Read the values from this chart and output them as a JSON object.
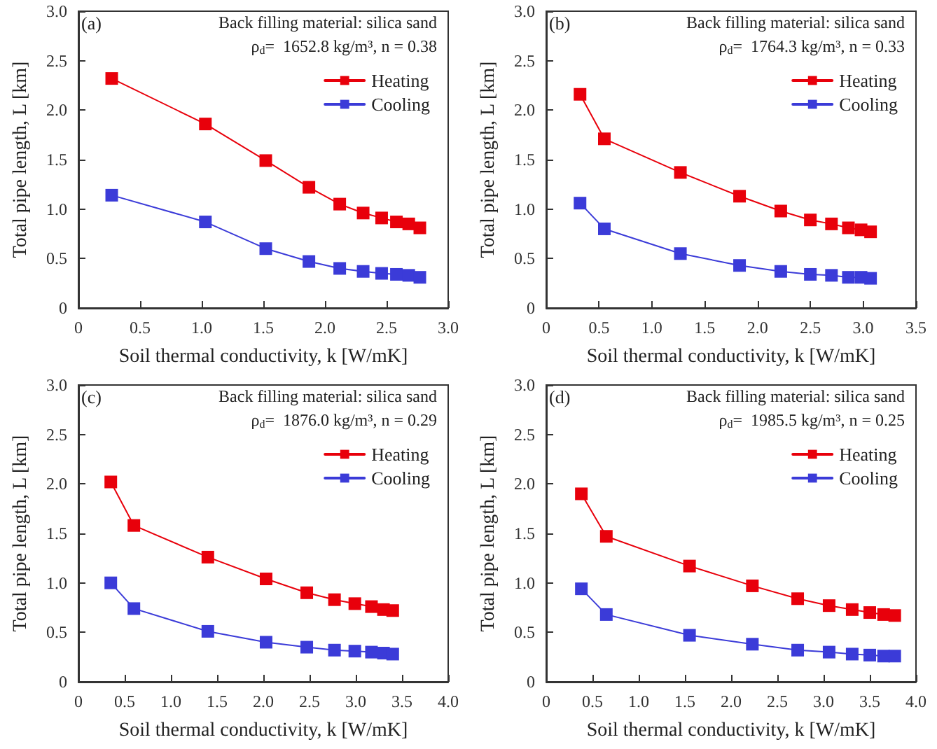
{
  "chart_data": [
    {
      "type": "line",
      "annotations": [
        "(a)",
        "Back filling material: silica sand",
        "ρ$_{d}$=  1652.8 kg/m³, n = 0.38"
      ],
      "xlabel": "Soil thermal conductivity, k [W/mK]",
      "ylabel": "Total pipe length, L [km]",
      "x": [
        0.27,
        1.03,
        1.52,
        1.87,
        2.12,
        2.31,
        2.46,
        2.58,
        2.68,
        2.77
      ],
      "series": [
        {
          "name": "Heating",
          "color": "#e8000b",
          "values": [
            2.32,
            1.86,
            1.49,
            1.22,
            1.05,
            0.96,
            0.91,
            0.87,
            0.85,
            0.81
          ]
        },
        {
          "name": "Cooling",
          "color": "#3b3bd8",
          "values": [
            1.14,
            0.87,
            0.6,
            0.47,
            0.4,
            0.37,
            0.35,
            0.34,
            0.33,
            0.31
          ]
        }
      ],
      "xlim": [
        0,
        3
      ],
      "xticks": [
        0,
        0.5,
        {
          "value": 1,
          "label": "1.0"
        },
        1.5,
        {
          "value": 2,
          "label": "2.0"
        },
        2.5,
        {
          "value": 3,
          "label": "3.0"
        }
      ],
      "ylim": [
        0,
        3
      ],
      "yticks": [
        0,
        0.5,
        {
          "value": 1,
          "label": "1.0"
        },
        1.5,
        {
          "value": 2,
          "label": "2.0"
        },
        2.5,
        {
          "value": 3,
          "label": "3.0"
        }
      ],
      "grid": false,
      "legend": "top right",
      "marker": "square",
      "line_style": "solid"
    },
    {
      "type": "line",
      "annotations": [
        "(b)",
        "Back filling material: silica sand",
        "ρ$_{d}$=  1764.3 kg/m³, n = 0.33"
      ],
      "xlabel": "Soil thermal conductivity, k [W/mK]",
      "ylabel": "Total pipe length, L [km]",
      "x": [
        0.32,
        0.55,
        1.27,
        1.83,
        2.22,
        2.5,
        2.7,
        2.86,
        2.98,
        3.07
      ],
      "series": [
        {
          "name": "Heating",
          "color": "#e8000b",
          "values": [
            2.16,
            1.71,
            1.37,
            1.13,
            0.98,
            0.89,
            0.85,
            0.81,
            0.79,
            0.77
          ]
        },
        {
          "name": "Cooling",
          "color": "#3b3bd8",
          "values": [
            1.06,
            0.8,
            0.55,
            0.43,
            0.37,
            0.34,
            0.33,
            0.31,
            0.31,
            0.3
          ]
        }
      ],
      "xlim": [
        0,
        3.5
      ],
      "xticks": [
        0,
        0.5,
        {
          "value": 1,
          "label": "1.0"
        },
        1.5,
        {
          "value": 2,
          "label": "2.0"
        },
        2.5,
        {
          "value": 3,
          "label": "3.0"
        },
        3.5
      ],
      "ylim": [
        0,
        3
      ],
      "yticks": [
        0,
        0.5,
        {
          "value": 1,
          "label": "1.0"
        },
        1.5,
        {
          "value": 2,
          "label": "2.0"
        },
        2.5,
        {
          "value": 3,
          "label": "3.0"
        }
      ],
      "grid": false,
      "legend": "top right",
      "marker": "square",
      "line_style": "solid"
    },
    {
      "type": "line",
      "annotations": [
        "(c)",
        "Back filling material: silica sand",
        "ρ$_{d}$=  1876.0 kg/m³, n = 0.29"
      ],
      "xlabel": "Soil thermal conductivity, k [W/mK]",
      "ylabel": "Total pipe length, L [km]",
      "x": [
        0.35,
        0.6,
        1.4,
        2.03,
        2.47,
        2.77,
        2.99,
        3.17,
        3.3,
        3.4
      ],
      "series": [
        {
          "name": "Heating",
          "color": "#e8000b",
          "values": [
            2.02,
            1.58,
            1.26,
            1.04,
            0.9,
            0.83,
            0.79,
            0.76,
            0.73,
            0.72
          ]
        },
        {
          "name": "Cooling",
          "color": "#3b3bd8",
          "values": [
            1.0,
            0.74,
            0.51,
            0.4,
            0.35,
            0.32,
            0.31,
            0.3,
            0.29,
            0.28
          ]
        }
      ],
      "xlim": [
        0,
        4
      ],
      "xticks": [
        0,
        0.5,
        {
          "value": 1,
          "label": "1.0"
        },
        1.5,
        {
          "value": 2,
          "label": "2.0"
        },
        2.5,
        {
          "value": 3,
          "label": "3.0"
        },
        3.5,
        {
          "value": 4,
          "label": "4.0"
        }
      ],
      "ylim": [
        0,
        3
      ],
      "yticks": [
        0,
        0.5,
        {
          "value": 1,
          "label": "1.0"
        },
        1.5,
        {
          "value": 2,
          "label": "2.0"
        },
        2.5,
        {
          "value": 3,
          "label": "3.0"
        }
      ],
      "grid": false,
      "legend": "top right",
      "marker": "square",
      "line_style": "solid"
    },
    {
      "type": "line",
      "annotations": [
        "(d)",
        "Back filling material: silica sand",
        "ρ$_{d}$=  1985.5 kg/m³, n = 0.25"
      ],
      "xlabel": "Soil thermal conductivity, k [W/mK]",
      "ylabel": "Total pipe length, L [km]",
      "x": [
        0.38,
        0.65,
        1.55,
        2.23,
        2.72,
        3.06,
        3.31,
        3.5,
        3.65,
        3.77
      ],
      "series": [
        {
          "name": "Heating",
          "color": "#e8000b",
          "values": [
            1.9,
            1.47,
            1.17,
            0.97,
            0.84,
            0.77,
            0.73,
            0.7,
            0.68,
            0.67
          ]
        },
        {
          "name": "Cooling",
          "color": "#3b3bd8",
          "values": [
            0.94,
            0.68,
            0.47,
            0.38,
            0.32,
            0.3,
            0.28,
            0.27,
            0.26,
            0.26
          ]
        }
      ],
      "xlim": [
        0,
        4
      ],
      "xticks": [
        0,
        0.5,
        {
          "value": 1,
          "label": "1.0"
        },
        1.5,
        {
          "value": 2,
          "label": "2.0"
        },
        2.5,
        {
          "value": 3,
          "label": "3.0"
        },
        3.5,
        {
          "value": 4,
          "label": "4.0"
        }
      ],
      "ylim": [
        0,
        3
      ],
      "yticks": [
        0,
        0.5,
        {
          "value": 1,
          "label": "1.0"
        },
        1.5,
        {
          "value": 2,
          "label": "2.0"
        },
        2.5,
        {
          "value": 3,
          "label": "3.0"
        }
      ],
      "grid": false,
      "legend": "top right",
      "marker": "square",
      "line_style": "solid"
    }
  ]
}
